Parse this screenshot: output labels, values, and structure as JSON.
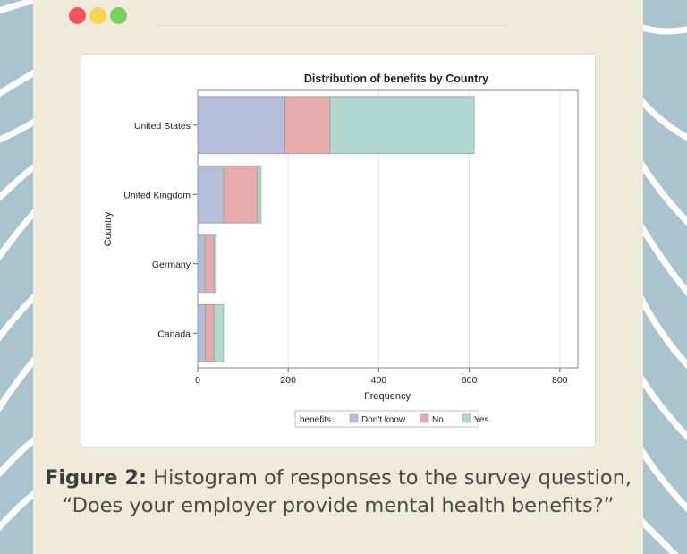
{
  "window": {
    "dots": [
      {
        "name": "close",
        "color": "#f2545b"
      },
      {
        "name": "minimize",
        "color": "#f5d74f"
      },
      {
        "name": "maximize",
        "color": "#7bcf5a"
      }
    ]
  },
  "caption": {
    "label": "Figure 2:",
    "text": "Histogram of responses to the survey question, “Does your employer provide mental health benefits?”"
  },
  "chart_data": {
    "type": "bar",
    "orientation": "horizontal",
    "stacked": true,
    "title": "Distribution of benefits by Country",
    "xlabel": "Frequency",
    "ylabel": "Country",
    "categories": [
      "United States",
      "United Kingdom",
      "Germany",
      "Canada"
    ],
    "series": [
      {
        "name": "Don't know",
        "values": [
          193,
          57,
          16,
          17
        ],
        "color": "#b8bdd9"
      },
      {
        "name": "No",
        "values": [
          99,
          75,
          20,
          19
        ],
        "color": "#e8abab"
      },
      {
        "name": "Yes",
        "values": [
          319,
          8,
          5,
          21
        ],
        "color": "#b1d7d1"
      }
    ],
    "xlim": [
      0,
      840
    ],
    "xticks": [
      0,
      200,
      400,
      600,
      800
    ],
    "grid": true,
    "legend": {
      "title": "benefits",
      "position": "bottom"
    }
  }
}
